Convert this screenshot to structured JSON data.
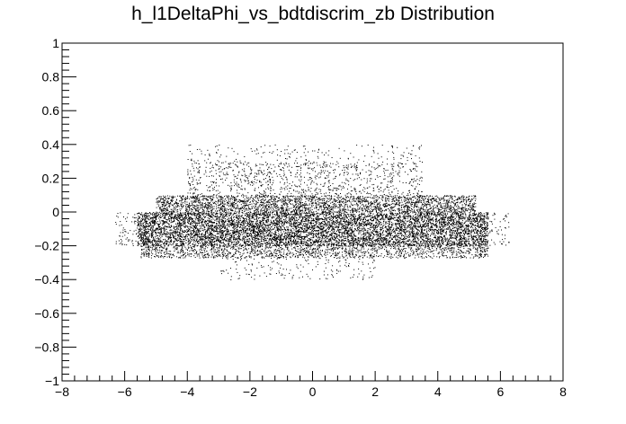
{
  "chart_data": {
    "type": "scatter",
    "title": "h_l1DeltaPhi_vs_bdtdiscrim_zb Distribution",
    "xlabel": "",
    "ylabel": "",
    "xlim": [
      -8,
      8
    ],
    "ylim": [
      -1,
      1
    ],
    "x_ticks": [
      -8,
      -6,
      -4,
      -2,
      0,
      2,
      4,
      6,
      8
    ],
    "x_tick_labels": [
      "−8",
      "−6",
      "−4",
      "−2",
      "0",
      "2",
      "4",
      "6",
      "8"
    ],
    "y_ticks": [
      -1,
      -0.8,
      -0.6,
      -0.4,
      -0.2,
      0,
      0.2,
      0.4,
      0.6,
      0.8,
      1
    ],
    "y_tick_labels": [
      "−1",
      "−0.8",
      "−0.6",
      "−0.4",
      "−0.2",
      "0",
      "0.2",
      "0.4",
      "0.6",
      "0.8",
      "1"
    ],
    "grid": false,
    "marker_color": "#000000",
    "regions": [
      {
        "x": [
          -5.6,
          5.6
        ],
        "y": [
          -0.2,
          0.0
        ],
        "density": "very high"
      },
      {
        "x": [
          -6.3,
          6.3
        ],
        "y": [
          -0.2,
          0.0
        ],
        "density": "low"
      },
      {
        "x": [
          -5.0,
          5.2
        ],
        "y": [
          0.0,
          0.1
        ],
        "density": "high"
      },
      {
        "x": [
          -5.5,
          5.6
        ],
        "y": [
          -0.27,
          -0.2
        ],
        "density": "medium"
      },
      {
        "x": [
          -4.0,
          3.5
        ],
        "y": [
          0.1,
          0.3
        ],
        "density": "low"
      },
      {
        "x": [
          -4.0,
          3.5
        ],
        "y": [
          0.3,
          0.4
        ],
        "density": "very low"
      },
      {
        "x": [
          -3.0,
          2.0
        ],
        "y": [
          -0.4,
          -0.27
        ],
        "density": "very low"
      }
    ]
  }
}
